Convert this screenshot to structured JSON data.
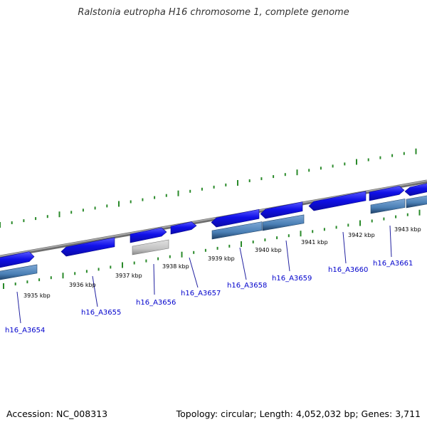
{
  "title": "Ralstonia eutropha H16 chromosome 1, complete genome",
  "footer": {
    "accession": "Accession: NC_008313",
    "summary": "Topology: circular; Length: 4,052,032 bp; Genes: 3,711"
  },
  "colors": {
    "backbone": "#8a8a8a",
    "tick": "#2a8a2a",
    "gene_forward": "#1010e8",
    "gene_reverse": "#4a7fb5",
    "gene_other": "#c4c4c4",
    "label": "#0000cc",
    "leader": "#2020a0"
  },
  "scale_labels": [
    "3935 kbp",
    "3936 kbp",
    "3937 kbp",
    "3938 kbp",
    "3939 kbp",
    "3940 kbp",
    "3941 kbp",
    "3942 kbp",
    "3943 kbp"
  ],
  "genes": [
    "h16_A3654",
    "h16_A3655",
    "h16_A3656",
    "h16_A3657",
    "h16_A3658",
    "h16_A3659",
    "h16_A3660",
    "h16_A3661"
  ]
}
